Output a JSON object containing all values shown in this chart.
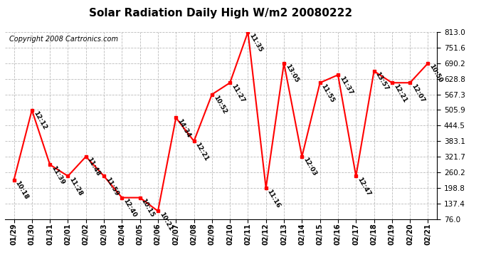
{
  "title": "Solar Radiation Daily High W/m2 20080222",
  "copyright": "Copyright 2008 Cartronics.com",
  "dates": [
    "01/29",
    "01/30",
    "01/31",
    "02/01",
    "02/02",
    "02/03",
    "02/04",
    "02/05",
    "02/06",
    "02/07",
    "02/08",
    "02/09",
    "02/10",
    "02/11",
    "02/12",
    "02/13",
    "02/14",
    "02/15",
    "02/16",
    "02/17",
    "02/18",
    "02/19",
    "02/20",
    "02/21"
  ],
  "values": [
    230,
    505,
    290,
    245,
    322,
    245,
    160,
    160,
    107,
    475,
    383,
    567,
    613,
    813,
    198,
    690,
    322,
    613,
    644,
    245,
    659,
    613,
    613,
    690
  ],
  "labels": [
    "10:18",
    "12:12",
    "11:39",
    "11:28",
    "11:48",
    "11:59",
    "12:40",
    "10:15",
    "10:21",
    "14:34",
    "12:21",
    "10:52",
    "11:27",
    "11:35",
    "11:16",
    "13:05",
    "12:03",
    "11:55",
    "11:37",
    "12:47",
    "13:57",
    "12:21",
    "12:07",
    "10:50"
  ],
  "ymin": 76.0,
  "ymax": 813.0,
  "yticks": [
    76.0,
    137.4,
    198.8,
    260.2,
    321.7,
    383.1,
    444.5,
    505.9,
    567.3,
    628.8,
    690.2,
    751.6,
    813.0
  ],
  "line_color": "#ff0000",
  "marker_color": "#ff0000",
  "bg_color": "#ffffff",
  "grid_color": "#bbbbbb",
  "title_fontsize": 11,
  "label_fontsize": 6.5,
  "copyright_fontsize": 7
}
